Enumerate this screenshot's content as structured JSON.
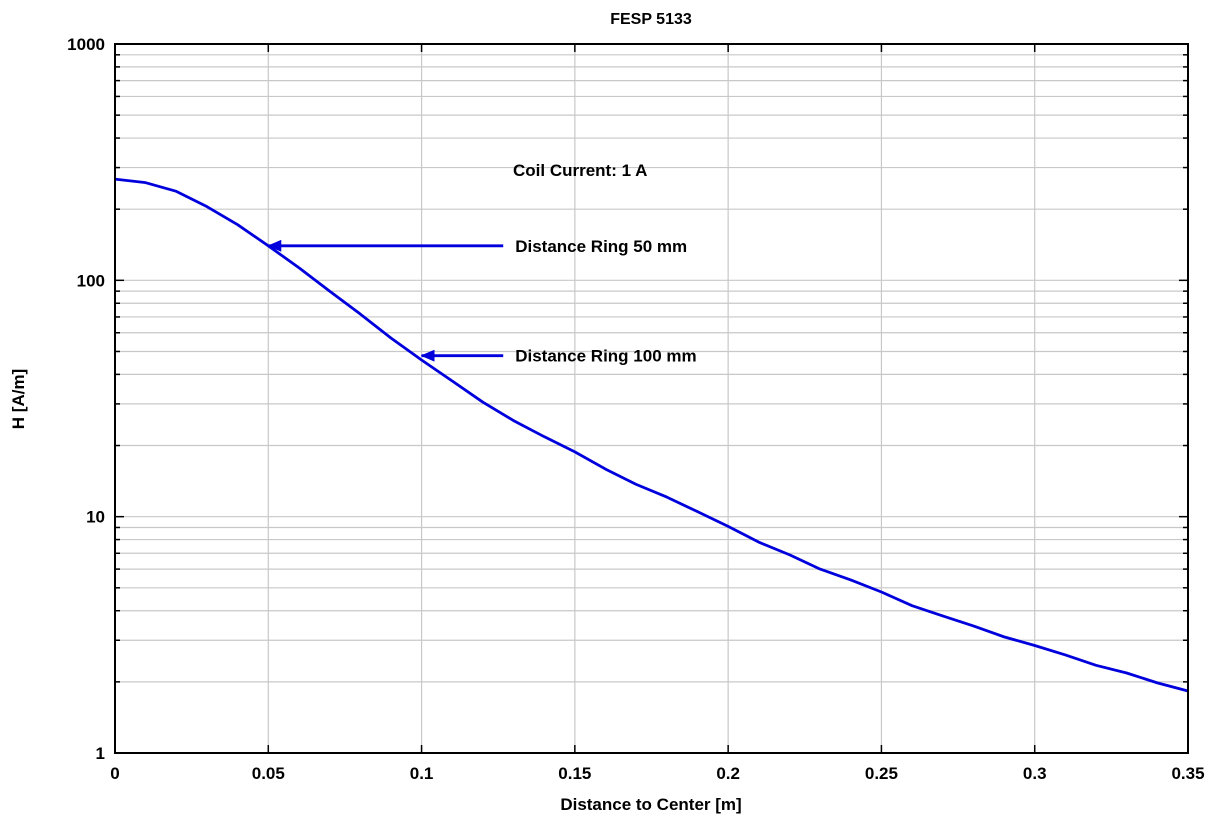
{
  "chart_data": {
    "type": "line",
    "title": "FESP 5133",
    "xlabel": "Distance to Center [m]",
    "ylabel": "H [A/m]",
    "xlim": [
      0,
      0.35
    ],
    "ylim": [
      1,
      1000
    ],
    "yscale": "log",
    "grid": true,
    "x_ticks": [
      "0",
      "0.05",
      "0.1",
      "0.15",
      "0.2",
      "0.25",
      "0.3",
      "0.35"
    ],
    "y_ticks": [
      "1",
      "10",
      "100",
      "1000"
    ],
    "series": [
      {
        "color": "#0000dd",
        "x": [
          0,
          0.01,
          0.02,
          0.03,
          0.04,
          0.05,
          0.06,
          0.07,
          0.08,
          0.09,
          0.1,
          0.11,
          0.12,
          0.13,
          0.14,
          0.15,
          0.16,
          0.17,
          0.18,
          0.19,
          0.2,
          0.21,
          0.22,
          0.23,
          0.24,
          0.25,
          0.26,
          0.27,
          0.28,
          0.29,
          0.3,
          0.31,
          0.32,
          0.33,
          0.34,
          0.35
        ],
        "y": [
          268,
          259,
          238,
          205,
          172,
          140,
          113,
          90,
          72,
          57,
          46,
          37.5,
          30.5,
          25.5,
          21.8,
          18.8,
          15.9,
          13.7,
          12.1,
          10.5,
          9.1,
          7.8,
          6.9,
          6.0,
          5.4,
          4.8,
          4.2,
          3.8,
          3.45,
          3.1,
          2.85,
          2.6,
          2.35,
          2.18,
          1.98,
          1.83
        ]
      }
    ],
    "annotations": [
      {
        "text": "Coil Current: 1 A"
      },
      {
        "text": "Distance Ring 50 mm",
        "arrow_to": [
          0.05,
          140
        ],
        "arrow_from": [
          0.125,
          140
        ]
      },
      {
        "text": "Distance Ring 100 mm",
        "arrow_to": [
          0.1,
          48
        ],
        "arrow_from": [
          0.125,
          48
        ]
      }
    ]
  }
}
